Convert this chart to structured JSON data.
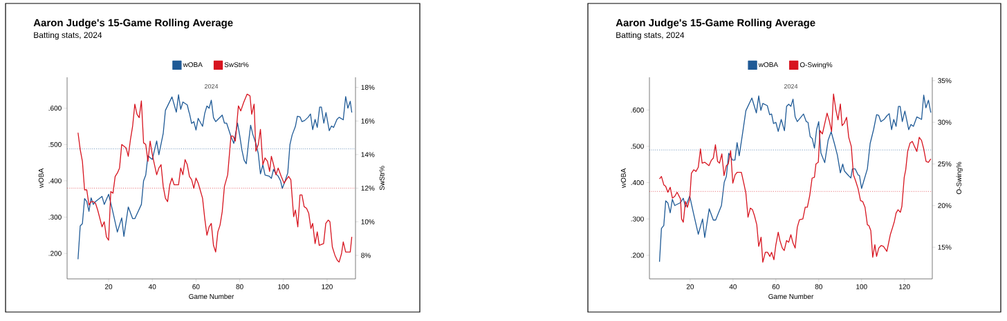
{
  "chart_data": [
    {
      "type": "line",
      "title": "Aaron Judge's 15-Game Rolling Average",
      "subtitle": "Batting stats, 2024",
      "xlabel": "Game Number",
      "ylabel": "wOBA",
      "y2label": "SwStr%",
      "annotations": [
        "2024"
      ],
      "legend": "top",
      "xlim": [
        1,
        133
      ],
      "xticks": [
        20,
        40,
        60,
        80,
        100,
        120
      ],
      "ylim": [
        0.13,
        0.685
      ],
      "yticks": [
        {
          "value": 0.2,
          "label": ".200"
        },
        {
          "value": 0.3,
          "label": ".300"
        },
        {
          "value": 0.4,
          "label": ".400"
        },
        {
          "value": 0.5,
          "label": ".500"
        },
        {
          "value": 0.6,
          "label": ".600"
        }
      ],
      "y2lim": [
        6.6,
        18.6
      ],
      "y2ticks": [
        {
          "value": 8,
          "label": "8%"
        },
        {
          "value": 10,
          "label": "10%"
        },
        {
          "value": 12,
          "label": "12%"
        },
        {
          "value": 14,
          "label": "14%"
        },
        {
          "value": 16,
          "label": "16%"
        },
        {
          "value": 18,
          "label": "18%"
        }
      ],
      "ref_lines": [
        {
          "axis": "y",
          "value": 0.488,
          "color": "#1f5a96",
          "line_style": "dotted"
        },
        {
          "axis": "y2",
          "value": 12.0,
          "color": "#d7141f",
          "line_style": "dotted"
        }
      ],
      "series": [
        {
          "name": "wOBA",
          "color": "#1f5a96",
          "x": [
            6,
            7,
            8,
            9,
            10,
            11,
            12,
            13,
            14,
            17,
            18,
            20,
            22,
            24,
            26,
            27,
            29,
            31,
            32,
            35,
            36,
            37,
            38,
            40,
            42,
            43,
            45,
            46,
            49,
            51,
            52,
            53,
            54,
            56,
            56.8,
            57,
            58,
            59,
            60,
            61,
            63,
            64,
            65,
            66,
            67,
            68,
            69,
            72,
            73,
            74,
            76,
            77.3,
            79,
            80,
            81,
            82,
            83,
            84,
            85,
            86,
            87.4,
            88.5,
            89.5,
            90.6,
            91.6,
            93.4,
            94.5,
            95.5,
            96.6,
            97.6,
            98.7,
            99.5,
            100.8,
            102,
            103,
            104,
            105.5,
            106.4,
            107.6,
            108.5,
            109.7,
            111.3,
            112.4,
            113.4,
            114.5,
            115.5,
            116.6,
            117.4,
            118.5,
            119.5,
            121,
            122,
            123,
            124.5,
            125.5,
            127.4,
            128.5,
            129.5,
            130.6,
            131.3
          ],
          "values": [
            0.184,
            0.276,
            0.282,
            0.351,
            0.343,
            0.316,
            0.353,
            0.335,
            0.343,
            0.357,
            0.335,
            0.363,
            0.313,
            0.259,
            0.298,
            0.247,
            0.328,
            0.296,
            0.296,
            0.335,
            0.4,
            0.416,
            0.469,
            0.459,
            0.51,
            0.472,
            0.531,
            0.594,
            0.631,
            0.589,
            0.637,
            0.597,
            0.617,
            0.609,
            0.589,
            0.586,
            0.558,
            0.563,
            0.54,
            0.572,
            0.55,
            0.586,
            0.606,
            0.6,
            0.622,
            0.574,
            0.563,
            0.581,
            0.559,
            0.559,
            0.522,
            0.503,
            0.559,
            0.525,
            0.485,
            0.457,
            0.447,
            0.503,
            0.553,
            0.528,
            0.503,
            0.475,
            0.419,
            0.444,
            0.416,
            0.413,
            0.407,
            0.432,
            0.419,
            0.413,
            0.4,
            0.379,
            0.4,
            0.422,
            0.5,
            0.526,
            0.55,
            0.578,
            0.576,
            0.563,
            0.566,
            0.575,
            0.584,
            0.541,
            0.569,
            0.547,
            0.603,
            0.603,
            0.559,
            0.588,
            0.538,
            0.551,
            0.547,
            0.569,
            0.575,
            0.568,
            0.632,
            0.6,
            0.619,
            0.588
          ]
        },
        {
          "name": "SwStr%",
          "color": "#d7141f",
          "axis": "y2",
          "x": [
            6,
            7,
            8,
            9,
            10,
            11,
            12,
            13,
            14,
            15,
            16,
            17,
            18,
            19,
            20,
            21,
            22,
            23,
            24,
            25,
            26,
            28,
            29,
            30,
            31,
            32,
            33,
            34,
            35,
            36,
            37,
            38,
            39,
            40,
            41,
            42,
            43,
            44,
            45,
            46,
            47,
            48,
            49,
            50,
            51,
            52,
            53,
            54,
            55,
            56,
            57,
            58,
            59,
            60,
            61,
            63,
            64,
            65,
            66,
            67,
            68,
            69,
            70,
            71,
            72,
            73,
            74.5,
            76,
            77,
            78,
            79.4,
            80.5,
            81.8,
            83.4,
            84.7,
            85.5,
            86.6,
            87.4,
            88.5,
            89.5,
            90.6,
            91.6,
            92.7,
            93.7,
            94.5,
            95.5,
            96.6,
            97.6,
            99,
            100.3,
            101.3,
            102.4,
            103.4,
            104.7,
            105.5,
            106.6,
            107.6,
            108.5,
            109.5,
            110.6,
            111.6,
            112.6,
            113.4,
            114.5,
            115.5,
            116.4,
            118.4,
            119.4,
            120.5,
            121.3,
            122.4,
            123.6,
            124.7,
            125.5,
            126.6,
            127.4,
            128.5,
            129.5,
            130.6,
            131.3
          ],
          "values": [
            15.3,
            14.3,
            13.6,
            11.9,
            11.9,
            11.0,
            11.2,
            11.2,
            11.1,
            10.7,
            10.2,
            9.7,
            10.0,
            9.1,
            8.9,
            11.8,
            11.7,
            12.7,
            12.9,
            13.2,
            14.6,
            14.4,
            13.9,
            14.9,
            15.7,
            17.0,
            16.4,
            16.2,
            17.2,
            14.7,
            14.6,
            13.6,
            14.8,
            14.0,
            13.4,
            12.8,
            13.2,
            13.4,
            12.1,
            11.4,
            11.2,
            12.2,
            12.6,
            12.2,
            12.2,
            12.2,
            13.2,
            12.8,
            13.7,
            13.4,
            12.7,
            12.5,
            12.0,
            12.6,
            12.3,
            11.4,
            10.2,
            9.2,
            9.7,
            9.9,
            8.6,
            8.2,
            9.4,
            9.8,
            10.6,
            12.1,
            12.8,
            15.1,
            15.1,
            14.8,
            16.9,
            16.6,
            17.1,
            17.6,
            17.5,
            16.4,
            17.0,
            14.2,
            14.6,
            15.5,
            13.4,
            13.8,
            13.6,
            13.0,
            13.9,
            13.4,
            12.8,
            13.2,
            12.7,
            12.3,
            12.5,
            12.7,
            12.5,
            10.3,
            10.7,
            9.7,
            11.6,
            11.6,
            10.9,
            10.8,
            10.5,
            9.6,
            9.9,
            8.7,
            9.4,
            8.6,
            8.7,
            9.9,
            10.1,
            10.0,
            8.5,
            8.0,
            7.7,
            7.6,
            8.1,
            8.8,
            8.2,
            8.2,
            8.2,
            9.1
          ]
        }
      ]
    },
    {
      "type": "line",
      "title": "Aaron Judge's 15-Game Rolling Average",
      "subtitle": "Batting stats, 2024",
      "xlabel": "Game Number",
      "ylabel": "wOBA",
      "y2label": "O-Swing%",
      "annotations": [
        "2024"
      ],
      "legend": "top",
      "xlim": [
        1,
        133
      ],
      "xticks": [
        20,
        40,
        60,
        80,
        100,
        120
      ],
      "ylim": [
        0.135,
        0.69
      ],
      "yticks": [
        {
          "value": 0.2,
          "label": ".200"
        },
        {
          "value": 0.3,
          "label": ".300"
        },
        {
          "value": 0.4,
          "label": ".400"
        },
        {
          "value": 0.5,
          "label": ".500"
        },
        {
          "value": 0.6,
          "label": ".600"
        }
      ],
      "y2lim": [
        11.2,
        35.4
      ],
      "y2ticks": [
        {
          "value": 15,
          "label": "15%"
        },
        {
          "value": 20,
          "label": "20%"
        },
        {
          "value": 25,
          "label": "25%"
        },
        {
          "value": 30,
          "label": "30%"
        },
        {
          "value": 35,
          "label": "35%"
        }
      ],
      "ref_lines": [
        {
          "axis": "y",
          "value": 0.49,
          "color": "#1f5a96",
          "line_style": "dotted"
        },
        {
          "axis": "y2",
          "value": 21.7,
          "color": "#d7141f",
          "line_style": "dotted"
        }
      ],
      "series": [
        {
          "name": "wOBA",
          "color": "#1f5a96",
          "x": [
            5.7,
            6.6,
            7.7,
            8.6,
            9.6,
            10.7,
            11.7,
            12.8,
            15.5,
            16.8,
            17.8,
            19.8,
            21.7,
            23.8,
            25.8,
            26.8,
            28.9,
            30.8,
            31.9,
            34.6,
            35.9,
            36.9,
            38,
            39.8,
            40.9,
            41.9,
            42.9,
            44.6,
            46,
            48.8,
            50.9,
            52,
            53,
            53.9,
            56,
            57.1,
            58,
            58.9,
            60,
            61.1,
            62.5,
            64,
            65,
            66,
            67,
            68,
            69,
            70,
            72.9,
            74.2,
            75,
            76,
            77,
            78,
            79,
            80,
            81,
            82.8,
            84.4,
            85.8,
            87.3,
            88.7,
            90.1,
            91.2,
            92,
            93.8,
            95,
            95.7,
            97,
            98.4,
            99,
            100,
            101.3,
            102.7,
            104,
            105.6,
            107,
            108,
            109,
            110.5,
            111.8,
            112.9,
            114,
            115,
            116.1,
            117.2,
            118,
            119,
            120.2,
            122,
            123,
            124.2,
            125.8,
            128,
            129,
            130,
            131.2,
            132.3
          ],
          "values": [
            0.182,
            0.274,
            0.282,
            0.35,
            0.344,
            0.317,
            0.354,
            0.337,
            0.345,
            0.357,
            0.333,
            0.363,
            0.312,
            0.258,
            0.3,
            0.249,
            0.328,
            0.297,
            0.297,
            0.337,
            0.401,
            0.417,
            0.481,
            0.462,
            0.462,
            0.51,
            0.474,
            0.541,
            0.598,
            0.633,
            0.592,
            0.639,
            0.599,
            0.618,
            0.612,
            0.587,
            0.589,
            0.563,
            0.566,
            0.541,
            0.574,
            0.543,
            0.61,
            0.616,
            0.61,
            0.63,
            0.581,
            0.568,
            0.589,
            0.568,
            0.566,
            0.527,
            0.521,
            0.495,
            0.546,
            0.568,
            0.482,
            0.455,
            0.517,
            0.54,
            0.508,
            0.476,
            0.427,
            0.451,
            0.432,
            0.42,
            0.413,
            0.438,
            0.438,
            0.421,
            0.42,
            0.384,
            0.41,
            0.438,
            0.508,
            0.546,
            0.587,
            0.585,
            0.568,
            0.574,
            0.584,
            0.59,
            0.546,
            0.574,
            0.555,
            0.61,
            0.61,
            0.568,
            0.597,
            0.546,
            0.56,
            0.555,
            0.581,
            0.574,
            0.641,
            0.606,
            0.627,
            0.593
          ]
        },
        {
          "name": "O-Swing%",
          "color": "#d7141f",
          "axis": "y2",
          "x": [
            5.7,
            6.6,
            7.7,
            8.6,
            9.6,
            10.7,
            11.7,
            12.8,
            13.9,
            15.5,
            16,
            16.8,
            17.8,
            18.7,
            19.8,
            20.6,
            21.7,
            22.7,
            23.8,
            24.8,
            25.6,
            26.8,
            28.8,
            29.8,
            30.8,
            31.8,
            32.8,
            33.7,
            34.8,
            35.8,
            36.9,
            37.8,
            38.9,
            39.9,
            41,
            42,
            43.9,
            45.1,
            46,
            47,
            48.1,
            49.1,
            50,
            51.1,
            52,
            53.1,
            53.9,
            55.1,
            56.1,
            57.2,
            58,
            59.1,
            60,
            61.1,
            61.9,
            63,
            63.9,
            65,
            66,
            67,
            68,
            69,
            70,
            71,
            72.6,
            73.7,
            74.7,
            75.8,
            76.9,
            78,
            78.7,
            79.8,
            80.6,
            81.7,
            82.6,
            83.9,
            85,
            86,
            86.9,
            88,
            89,
            90.1,
            90.9,
            91.9,
            93,
            94,
            95.2,
            96.2,
            97.3,
            98.4,
            99.5,
            100.5,
            101.6,
            102.7,
            103.4,
            104.3,
            105.2,
            106.2,
            107,
            108,
            109.1,
            110.2,
            111.8,
            113.4,
            114.5,
            115.3,
            116.1,
            117,
            118.1,
            118.8,
            119.9,
            120.6,
            121.5,
            122.6,
            123.7,
            124.7,
            125.8,
            126.9,
            128,
            129,
            130.1,
            131.2,
            132.3
          ],
          "values": [
            23.2,
            23.5,
            22.5,
            22.3,
            21.6,
            22.2,
            20.9,
            21.1,
            21.6,
            20.8,
            18.4,
            18.0,
            20.5,
            19.8,
            20.8,
            23.9,
            24.3,
            24.1,
            24.6,
            26.8,
            25.1,
            25.2,
            24.8,
            25.4,
            25.7,
            27.3,
            25.3,
            25.1,
            26.2,
            23.6,
            24.8,
            25.0,
            26.6,
            22.7,
            23.7,
            24.0,
            24.0,
            22.6,
            21.5,
            18.6,
            19.7,
            19.5,
            18.8,
            17.7,
            15.1,
            16.2,
            13.2,
            14.4,
            14.4,
            13.9,
            14.4,
            13.5,
            15.3,
            16.8,
            15.8,
            14.9,
            14.6,
            15.8,
            15.6,
            16.5,
            15.5,
            14.9,
            17.4,
            18.3,
            18.4,
            19.8,
            19.8,
            21.2,
            23.3,
            23.4,
            25.0,
            25.2,
            29.0,
            28.6,
            29.6,
            31.1,
            30.1,
            28.9,
            33.4,
            31.5,
            30.3,
            32.2,
            29.6,
            29.9,
            30.6,
            28.2,
            27.1,
            23.7,
            22.9,
            22.0,
            20.6,
            20.5,
            19.8,
            17.7,
            17.6,
            17.0,
            13.8,
            15.3,
            13.9,
            14.9,
            15.2,
            15.1,
            14.5,
            16.5,
            17.4,
            18.1,
            19.1,
            19.5,
            19.2,
            19.9,
            23.4,
            24.3,
            26.5,
            27.5,
            27.7,
            27.1,
            26.5,
            28.2,
            27.8,
            26.8,
            25.3,
            25.2,
            25.6
          ]
        }
      ]
    }
  ]
}
